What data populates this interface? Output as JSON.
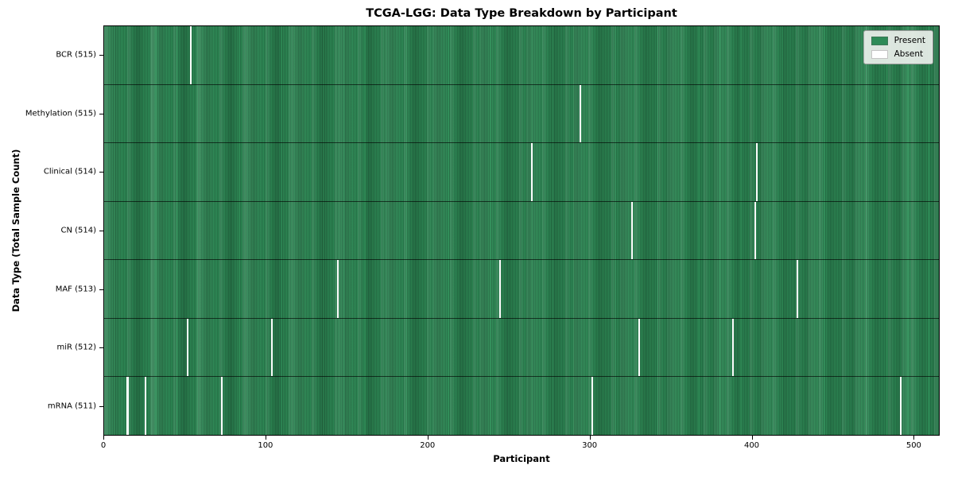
{
  "figure": {
    "title": "TCGA-LGG: Data Type Breakdown by Participant",
    "xlabel": "Participant",
    "ylabel": "Data Type (Total Sample Count)"
  },
  "chart_data": {
    "type": "heatmap",
    "title": "TCGA-LGG: Data Type Breakdown by Participant",
    "xlabel": "Participant",
    "ylabel": "Data Type (Total Sample Count)",
    "n_participants": 516,
    "xlim": [
      0,
      516
    ],
    "x_ticks": [
      0,
      100,
      200,
      300,
      400,
      500
    ],
    "grid": false,
    "colors": {
      "present": "#2e8b57",
      "absent": "#ffffff",
      "cell_edge": "#1b5334",
      "legend_bg": "#f0f2ee",
      "spine": "#000000"
    },
    "rows": [
      {
        "data_type": "BCR",
        "label": "BCR (515)",
        "present_count": 515,
        "absent_participants": [
          53
        ]
      },
      {
        "data_type": "Methylation",
        "label": "Methylation (515)",
        "present_count": 515,
        "absent_participants": [
          294
        ]
      },
      {
        "data_type": "Clinical",
        "label": "Clinical (514)",
        "present_count": 514,
        "absent_participants": [
          264,
          403
        ]
      },
      {
        "data_type": "CN",
        "label": "CN (514)",
        "present_count": 514,
        "absent_participants": [
          326,
          402
        ]
      },
      {
        "data_type": "MAF",
        "label": "MAF (513)",
        "present_count": 513,
        "absent_participants": [
          144,
          244,
          428
        ]
      },
      {
        "data_type": "miR",
        "label": "miR (512)",
        "present_count": 512,
        "absent_participants": [
          51,
          103,
          330,
          388
        ]
      },
      {
        "data_type": "mRNA",
        "label": "mRNA (511)",
        "present_count": 511,
        "absent_participants": [
          14,
          25,
          72,
          301,
          492
        ]
      }
    ],
    "legend": {
      "position": "upper right",
      "items": [
        {
          "label": "Present",
          "color": "#2e8b57"
        },
        {
          "label": "Absent",
          "color": "#ffffff"
        }
      ]
    }
  }
}
